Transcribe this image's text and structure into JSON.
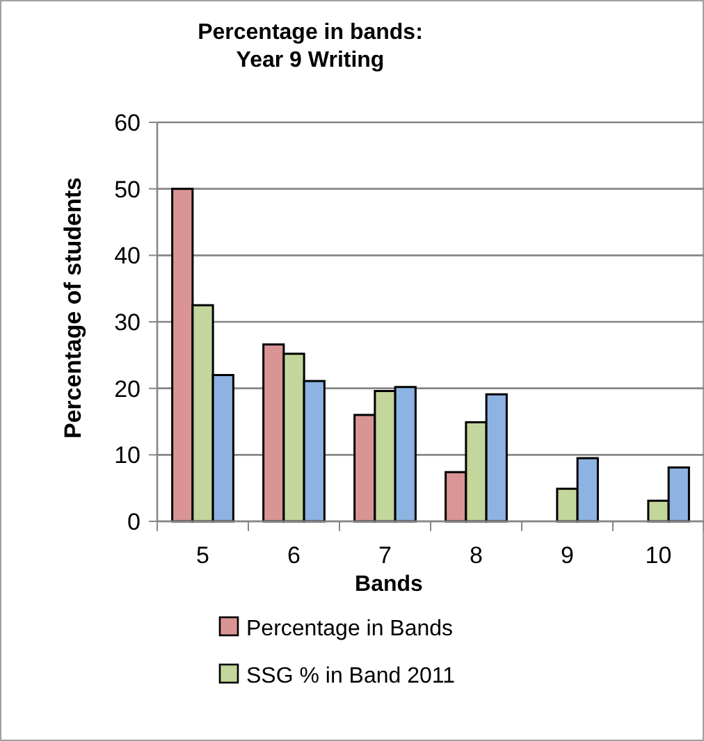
{
  "chart_data": {
    "type": "bar",
    "title": "Percentage in bands:\nYear 9 Writing",
    "xlabel": "Bands",
    "ylabel": "Percentage of students",
    "categories": [
      "5",
      "6",
      "7",
      "8",
      "9",
      "10"
    ],
    "series": [
      {
        "name": "Percentage in Bands",
        "color": "#d99594",
        "values": [
          50,
          26.6,
          16,
          7.4,
          null,
          null
        ]
      },
      {
        "name": "SSG % in Band 2011",
        "color": "#c3d69b",
        "values": [
          32.5,
          25.2,
          19.6,
          14.9,
          4.9,
          3.1
        ]
      },
      {
        "color": "#8db3e2",
        "values": [
          22,
          21.1,
          20.2,
          19.1,
          9.5,
          8.1
        ]
      }
    ],
    "ylim": [
      0,
      60
    ],
    "yticks": [
      0,
      10,
      20,
      30,
      40,
      50,
      60
    ],
    "grid": "y",
    "legend": "bottom"
  }
}
